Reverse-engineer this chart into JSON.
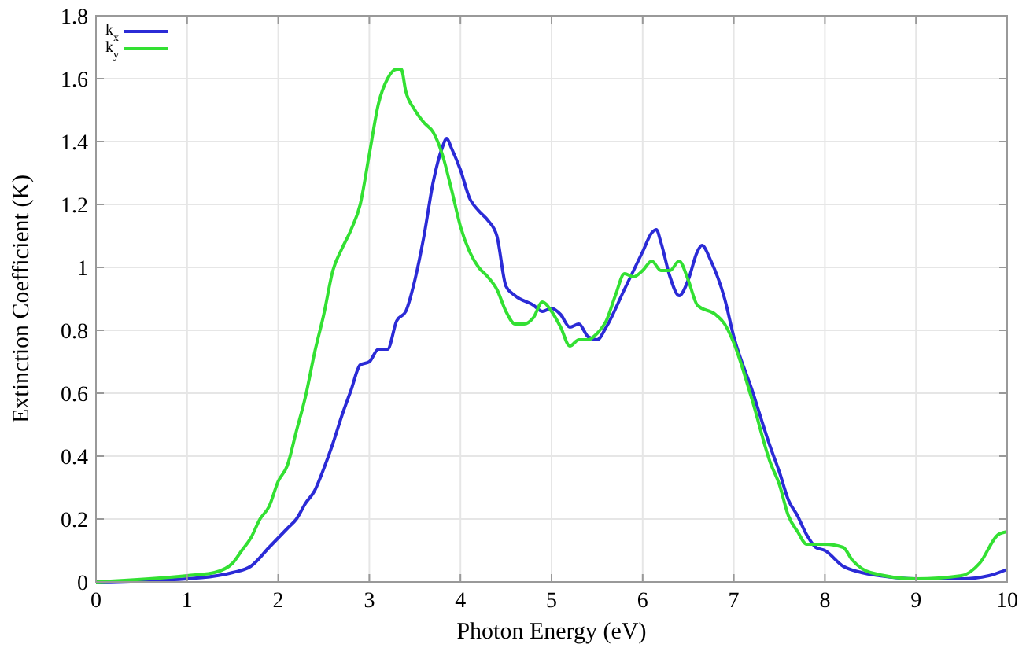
{
  "chart_data": {
    "type": "line",
    "xlabel": "Photon Energy (eV)",
    "ylabel": "Extinction Coefficient (K)",
    "xlim": [
      0,
      10
    ],
    "ylim": [
      0,
      1.8
    ],
    "xticks": [
      0,
      1,
      2,
      3,
      4,
      5,
      6,
      7,
      8,
      9,
      10
    ],
    "yticks": [
      0,
      0.2,
      0.4,
      0.6,
      0.8,
      1,
      1.2,
      1.4,
      1.6,
      1.8
    ],
    "grid": true,
    "legend": "top left",
    "marker": "none",
    "line_style": "solid",
    "series": [
      {
        "name": "k$_{x}$",
        "color": "#2b2bd6",
        "x": [
          0,
          1,
          1.5,
          1.7,
          1.9,
          2,
          2.1,
          2.2,
          2.3,
          2.4,
          2.5,
          2.6,
          2.7,
          2.8,
          2.9,
          3,
          3.1,
          3.2,
          3.3,
          3.4,
          3.5,
          3.6,
          3.7,
          3.8,
          3.85,
          3.9,
          4,
          4.1,
          4.2,
          4.3,
          4.4,
          4.5,
          4.6,
          4.8,
          4.9,
          5,
          5.1,
          5.2,
          5.3,
          5.4,
          5.5,
          5.6,
          5.8,
          6,
          6.1,
          6.15,
          6.2,
          6.3,
          6.4,
          6.5,
          6.6,
          6.65,
          6.75,
          6.9,
          7,
          7.2,
          7.4,
          7.5,
          7.6,
          7.7,
          7.8,
          7.9,
          8,
          8.2,
          8.4,
          8.6,
          9,
          9.5,
          9.8,
          10
        ],
        "values": [
          0,
          0.01,
          0.03,
          0.05,
          0.11,
          0.14,
          0.17,
          0.2,
          0.25,
          0.29,
          0.36,
          0.44,
          0.53,
          0.61,
          0.69,
          0.7,
          0.74,
          0.74,
          0.83,
          0.86,
          0.96,
          1.1,
          1.27,
          1.38,
          1.41,
          1.38,
          1.31,
          1.22,
          1.18,
          1.15,
          1.1,
          0.94,
          0.91,
          0.88,
          0.86,
          0.87,
          0.85,
          0.81,
          0.82,
          0.78,
          0.77,
          0.81,
          0.93,
          1.05,
          1.11,
          1.12,
          1.08,
          0.97,
          0.91,
          0.96,
          1.05,
          1.07,
          1.02,
          0.9,
          0.78,
          0.61,
          0.43,
          0.35,
          0.26,
          0.21,
          0.15,
          0.11,
          0.1,
          0.05,
          0.03,
          0.02,
          0.01,
          0.01,
          0.02,
          0.04
        ]
      },
      {
        "name": "k$_{y}$",
        "color": "#33e033",
        "x": [
          0,
          1,
          1.3,
          1.5,
          1.6,
          1.7,
          1.8,
          1.9,
          2,
          2.1,
          2.2,
          2.3,
          2.4,
          2.5,
          2.6,
          2.7,
          2.8,
          2.9,
          3,
          3.1,
          3.2,
          3.3,
          3.35,
          3.4,
          3.5,
          3.6,
          3.7,
          3.8,
          3.9,
          4,
          4.1,
          4.2,
          4.3,
          4.4,
          4.5,
          4.6,
          4.7,
          4.8,
          4.9,
          5,
          5.1,
          5.2,
          5.3,
          5.4,
          5.5,
          5.6,
          5.7,
          5.8,
          5.9,
          6,
          6.1,
          6.2,
          6.3,
          6.4,
          6.5,
          6.6,
          6.8,
          6.9,
          7,
          7.2,
          7.4,
          7.5,
          7.6,
          7.7,
          7.8,
          8,
          8.2,
          8.3,
          8.5,
          9,
          9.5,
          9.7,
          9.9,
          10
        ],
        "values": [
          0,
          0.02,
          0.03,
          0.06,
          0.1,
          0.14,
          0.2,
          0.24,
          0.32,
          0.37,
          0.48,
          0.59,
          0.73,
          0.85,
          0.99,
          1.06,
          1.12,
          1.2,
          1.36,
          1.52,
          1.6,
          1.63,
          1.63,
          1.56,
          1.5,
          1.46,
          1.43,
          1.36,
          1.25,
          1.13,
          1.05,
          1,
          0.97,
          0.93,
          0.86,
          0.82,
          0.82,
          0.84,
          0.89,
          0.86,
          0.81,
          0.75,
          0.77,
          0.77,
          0.79,
          0.83,
          0.91,
          0.98,
          0.97,
          0.99,
          1.02,
          0.99,
          0.99,
          1.02,
          0.96,
          0.88,
          0.85,
          0.82,
          0.76,
          0.58,
          0.38,
          0.31,
          0.21,
          0.16,
          0.12,
          0.12,
          0.11,
          0.07,
          0.03,
          0.01,
          0.02,
          0.06,
          0.15,
          0.16
        ]
      }
    ]
  }
}
